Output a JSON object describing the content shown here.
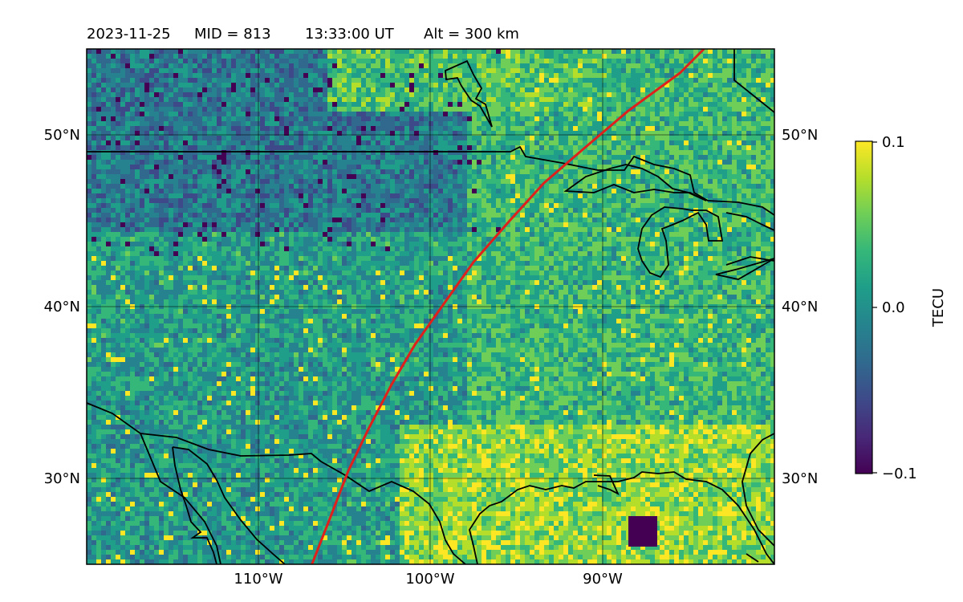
{
  "header": {
    "date": "2023-11-25",
    "mid": "MID = 813",
    "time": "13:33:00  UT",
    "altitude": "Alt = 300 km"
  },
  "map": {
    "lon_range": [
      -120,
      -80
    ],
    "lat_range": [
      25,
      55
    ],
    "gridlines": true,
    "lon_tick_labels": [
      "110°W",
      "100°W",
      "90°W"
    ],
    "lat_tick_labels": [
      "50°N",
      "40°N",
      "30°N"
    ],
    "path_line_color": "#e0201b",
    "path_line": [
      [
        -106.9,
        25
      ],
      [
        -105.8,
        27.8
      ],
      [
        -104.8,
        30.4
      ],
      [
        -103.6,
        32.9
      ],
      [
        -102.3,
        35.4
      ],
      [
        -100.9,
        37.8
      ],
      [
        -99.2,
        40.2
      ],
      [
        -97.5,
        42.6
      ],
      [
        -95.4,
        45.0
      ],
      [
        -93.4,
        47.2
      ],
      [
        -91.2,
        49.1
      ],
      [
        -88.5,
        51.4
      ],
      [
        -85.5,
        53.6
      ],
      [
        -84.1,
        55
      ]
    ],
    "coastline_color": "#000000"
  },
  "colorbar": {
    "label": "TECU",
    "ticks": [
      "0.1",
      "0.0",
      "−0.1"
    ],
    "vmin": -0.1,
    "vmax": 0.1,
    "colormap": [
      "#440154",
      "#482878",
      "#3e4989",
      "#31688e",
      "#26828e",
      "#1f9e89",
      "#35b779",
      "#6ece58",
      "#b5de2b",
      "#fde725"
    ]
  }
}
